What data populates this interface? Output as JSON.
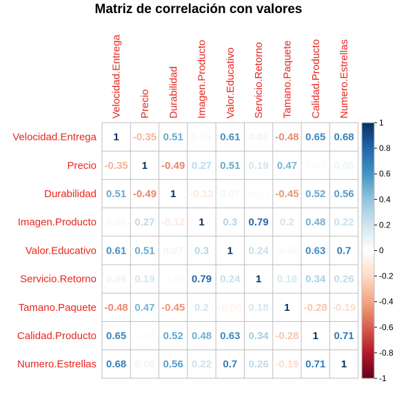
{
  "chart_data": {
    "type": "heatmap",
    "title": "Matriz de correlación con valores",
    "variables": [
      "Velocidad.Entrega",
      "Precio",
      "Durabilidad",
      "Imagen.Producto",
      "Valor.Educativo",
      "Servicio.Retorno",
      "Tamano.Paquete",
      "Calidad.Producto",
      "Numero.Estrellas"
    ],
    "values": [
      [
        1,
        -0.35,
        0.51,
        0.05,
        0.61,
        0.08,
        -0.48,
        0.65,
        0.68
      ],
      [
        -0.35,
        1,
        -0.49,
        0.27,
        0.51,
        0.19,
        0.47,
        0.03,
        0.08
      ],
      [
        0.51,
        -0.49,
        1,
        -0.12,
        0.07,
        -0.03,
        -0.45,
        0.52,
        0.56
      ],
      [
        0.05,
        0.27,
        -0.12,
        1,
        0.3,
        0.79,
        0.2,
        0.48,
        0.22
      ],
      [
        0.61,
        0.51,
        0.07,
        0.3,
        1,
        0.24,
        -0.06,
        0.63,
        0.7
      ],
      [
        0.08,
        0.19,
        -0.03,
        0.79,
        0.24,
        1,
        0.18,
        0.34,
        0.26
      ],
      [
        -0.48,
        0.47,
        -0.45,
        0.2,
        -0.06,
        0.18,
        1,
        -0.28,
        -0.19
      ],
      [
        0.65,
        0.03,
        0.52,
        0.48,
        0.63,
        0.34,
        -0.28,
        1,
        0.71
      ],
      [
        0.68,
        0.08,
        0.56,
        0.22,
        0.7,
        0.26,
        -0.19,
        0.71,
        1
      ]
    ],
    "colorbar": {
      "range": [
        -1,
        1
      ],
      "ticks": [
        "1",
        "0.8",
        "0.6",
        "0.4",
        "0.2",
        "0",
        "-0.2",
        "-0.4",
        "-0.6",
        "-0.8",
        "-1"
      ]
    },
    "label_color": "#e8251f",
    "grid": true
  }
}
